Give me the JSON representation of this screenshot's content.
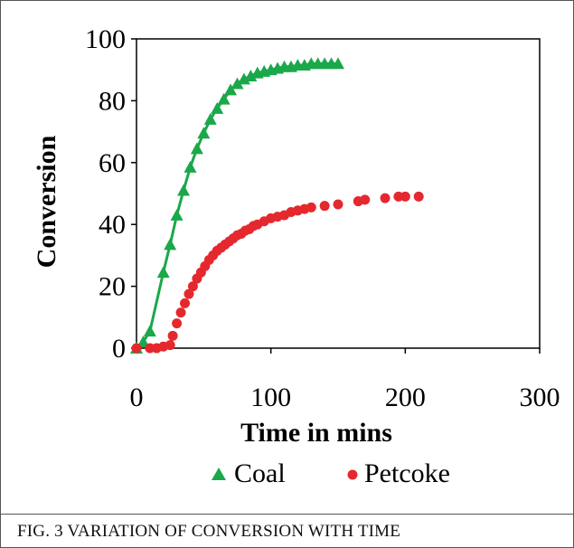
{
  "caption": "FIG. 3     VARIATION OF CONVERSION WITH TIME",
  "chart_data": {
    "type": "scatter",
    "xlabel": "Time in mins",
    "ylabel": "Conversion",
    "xlim": [
      0,
      300
    ],
    "ylim": [
      0,
      100
    ],
    "xticks": [
      "0",
      "100",
      "200",
      "300"
    ],
    "yticks": [
      "0",
      "20",
      "40",
      "60",
      "80",
      "100"
    ],
    "grid": false,
    "legend_position": "bottom",
    "series": [
      {
        "name": "Coal",
        "color": "#1aa84a",
        "marker": "triangle",
        "fit_line": true,
        "x": [
          0,
          5,
          10,
          20,
          25,
          30,
          35,
          40,
          45,
          50,
          55,
          60,
          65,
          70,
          75,
          80,
          85,
          90,
          95,
          100,
          105,
          110,
          115,
          120,
          125,
          130,
          135,
          140,
          145,
          150
        ],
        "y": [
          0,
          2,
          5.5,
          24.5,
          33.5,
          43,
          51,
          58.5,
          64.5,
          69.5,
          74,
          77.5,
          80.5,
          83.5,
          85.5,
          87,
          88,
          89,
          89.5,
          90,
          90.5,
          91,
          91,
          91.5,
          91.5,
          92,
          92,
          92,
          92,
          92
        ]
      },
      {
        "name": "Petcoke",
        "color": "#e5282e",
        "marker": "circle",
        "x": [
          0,
          10,
          15,
          20,
          25,
          27,
          30,
          33,
          36,
          39,
          42,
          45,
          48,
          51,
          54,
          57,
          60,
          63,
          66,
          69,
          72,
          75,
          78,
          81,
          84,
          87,
          90,
          95,
          100,
          105,
          110,
          115,
          120,
          125,
          130,
          140,
          150,
          165,
          170,
          185,
          195,
          200,
          210
        ],
        "y": [
          0,
          0,
          0,
          0.5,
          1,
          4,
          8,
          11.5,
          14.5,
          17.5,
          20,
          22.5,
          24.5,
          26.5,
          28.5,
          30,
          31.5,
          32.5,
          33.5,
          34.5,
          35.5,
          36.5,
          37,
          38,
          38.5,
          39.5,
          40,
          41,
          42,
          42.5,
          43,
          44,
          44.5,
          45,
          45.5,
          46,
          46.5,
          47.5,
          48,
          48.5,
          49,
          49,
          49
        ]
      }
    ]
  }
}
